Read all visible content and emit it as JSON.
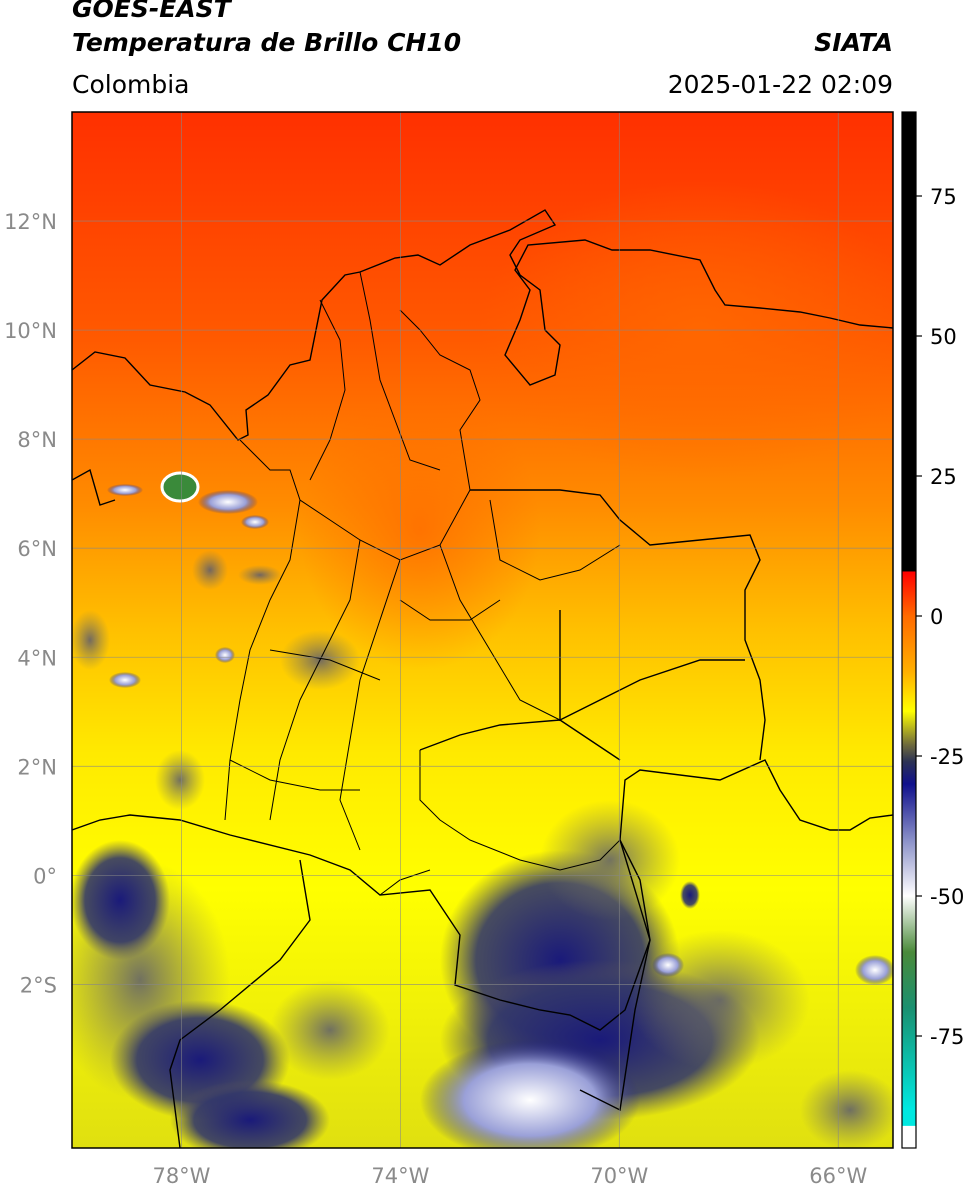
{
  "header": {
    "satellite": "GOES-EAST",
    "product": "Temperatura de Brillo CH10",
    "organization": "SIATA",
    "region": "Colombia",
    "datetime": "2025-01-22 02:09"
  },
  "map": {
    "lon_range": [
      -80,
      -65
    ],
    "lat_range": [
      -5,
      14
    ],
    "lat_ticks": [
      {
        "value": 12,
        "label": "12°N"
      },
      {
        "value": 10,
        "label": "10°N"
      },
      {
        "value": 8,
        "label": "8°N"
      },
      {
        "value": 6,
        "label": "6°N"
      },
      {
        "value": 4,
        "label": "4°N"
      },
      {
        "value": 2,
        "label": "2°N"
      },
      {
        "value": 0,
        "label": "0°"
      },
      {
        "value": -2,
        "label": "2°S"
      }
    ],
    "lon_ticks": [
      {
        "value": -78,
        "label": "78°W"
      },
      {
        "value": -74,
        "label": "74°W"
      },
      {
        "value": -70,
        "label": "70°W"
      },
      {
        "value": -66,
        "label": "66°W"
      }
    ],
    "gridlines": true
  },
  "colorbar": {
    "min": -95,
    "max": 90,
    "ticks": [
      {
        "value": 75,
        "label": "75"
      },
      {
        "value": 50,
        "label": "50"
      },
      {
        "value": 25,
        "label": "25"
      },
      {
        "value": 0,
        "label": "0"
      },
      {
        "value": -25,
        "label": "-25"
      },
      {
        "value": -50,
        "label": "-50"
      },
      {
        "value": -75,
        "label": "-75"
      }
    ],
    "stops": [
      {
        "value": 90,
        "color": "#000000"
      },
      {
        "value": 8,
        "color": "#000000"
      },
      {
        "value": 7.9,
        "color": "#ff0000"
      },
      {
        "value": 0,
        "color": "#ff6a00"
      },
      {
        "value": -10,
        "color": "#ffb000"
      },
      {
        "value": -17,
        "color": "#ffff00"
      },
      {
        "value": -23,
        "color": "#6e6a3c"
      },
      {
        "value": -26,
        "color": "#2c3254"
      },
      {
        "value": -30,
        "color": "#10108c"
      },
      {
        "value": -40,
        "color": "#8a90c8"
      },
      {
        "value": -50,
        "color": "#ffffff"
      },
      {
        "value": -60,
        "color": "#4a8a3a"
      },
      {
        "value": -70,
        "color": "#1a9070"
      },
      {
        "value": -88,
        "color": "#00e8e0"
      },
      {
        "value": -91,
        "color": "#00e8e0"
      },
      {
        "value": -91.1,
        "color": "#ffffff"
      },
      {
        "value": -95,
        "color": "#ffffff"
      }
    ]
  }
}
